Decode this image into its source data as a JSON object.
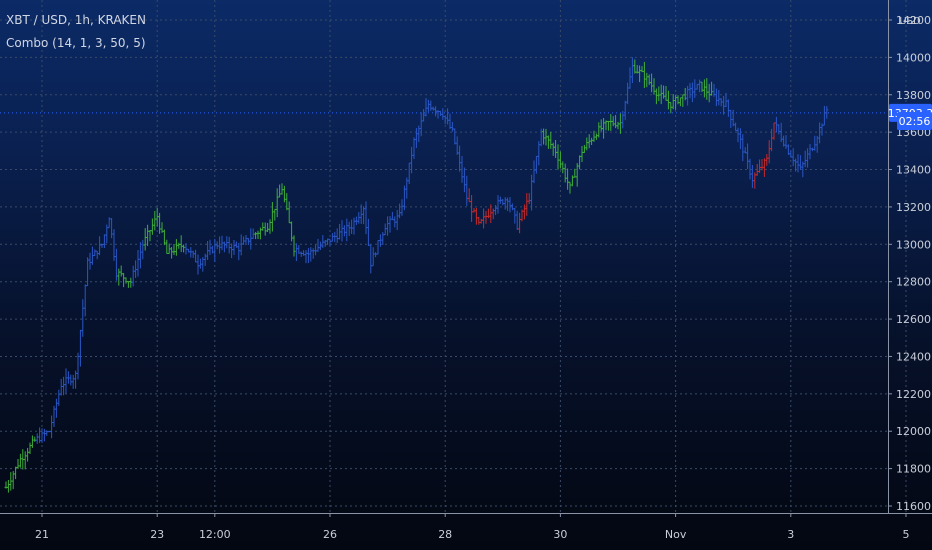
{
  "legend": {
    "symbol": "XBT / USD, 1h, KRAKEN",
    "indicator": "Combo (14, 1, 3, 50, 5)"
  },
  "price_scale": {
    "currency": "USD",
    "last_price": "13703.3",
    "countdown": "02:56"
  },
  "colors": {
    "bar_up": "#3fae3a",
    "bar_down": "#c62a2a",
    "bar_neutral": "#2a57c6",
    "grid": "#3a4a66",
    "badge": "#2962ff"
  },
  "chart_data": {
    "type": "ohlc",
    "title": "XBT / USD, 1h, KRAKEN",
    "xlabel": "",
    "ylabel": "USD",
    "ylim": [
      11550,
      14200
    ],
    "yticks": [
      11600,
      11800,
      12000,
      12200,
      12400,
      12600,
      12800,
      13000,
      13200,
      13400,
      13600,
      13800,
      14000,
      14200
    ],
    "ytick_labels": [
      "11600.0",
      "11800.0",
      "12000.0",
      "12200.0",
      "12400.0",
      "12600.0",
      "12800.0",
      "13000.0",
      "13200.0",
      "13400.0",
      "13600.0",
      "13800.0",
      "14000.0",
      "14200.0"
    ],
    "x_ticks": [
      {
        "label": "21",
        "hour": 15
      },
      {
        "label": "23",
        "hour": 63
      },
      {
        "label": "12:00",
        "hour": 87
      },
      {
        "label": "26",
        "hour": 135
      },
      {
        "label": "28",
        "hour": 183
      },
      {
        "label": "30",
        "hour": 231
      },
      {
        "label": "Nov",
        "hour": 279
      },
      {
        "label": "3",
        "hour": 327
      },
      {
        "label": "5",
        "hour": 375
      }
    ],
    "x_range_hours": [
      0,
      383
    ],
    "grid": true,
    "last_price": 13703.3,
    "series": [
      {
        "name": "Combo",
        "coloring": "green = buy, red = sell, blue = neutral",
        "path": [
          {
            "t": 0,
            "p": 11700,
            "s": "up"
          },
          {
            "t": 6,
            "p": 11850,
            "s": "up"
          },
          {
            "t": 12,
            "p": 11950,
            "s": "neutral"
          },
          {
            "t": 18,
            "p": 12000,
            "s": "neutral"
          },
          {
            "t": 23,
            "p": 12250,
            "s": "neutral"
          },
          {
            "t": 29,
            "p": 12300,
            "s": "neutral"
          },
          {
            "t": 34,
            "p": 12900,
            "s": "neutral"
          },
          {
            "t": 40,
            "p": 13000,
            "s": "neutral"
          },
          {
            "t": 43,
            "p": 13150,
            "s": "neutral"
          },
          {
            "t": 46,
            "p": 12850,
            "s": "up"
          },
          {
            "t": 52,
            "p": 12800,
            "s": "neutral"
          },
          {
            "t": 57,
            "p": 13000,
            "s": "up"
          },
          {
            "t": 63,
            "p": 13150,
            "s": "up"
          },
          {
            "t": 67,
            "p": 12950,
            "s": "up"
          },
          {
            "t": 74,
            "p": 13000,
            "s": "neutral"
          },
          {
            "t": 80,
            "p": 12900,
            "s": "neutral"
          },
          {
            "t": 88,
            "p": 13000,
            "s": "neutral"
          },
          {
            "t": 97,
            "p": 12980,
            "s": "neutral"
          },
          {
            "t": 103,
            "p": 13050,
            "s": "up"
          },
          {
            "t": 109,
            "p": 13100,
            "s": "up"
          },
          {
            "t": 115,
            "p": 13300,
            "s": "up"
          },
          {
            "t": 120,
            "p": 12980,
            "s": "neutral"
          },
          {
            "t": 126,
            "p": 12950,
            "s": "neutral"
          },
          {
            "t": 132,
            "p": 13000,
            "s": "neutral"
          },
          {
            "t": 138,
            "p": 13050,
            "s": "neutral"
          },
          {
            "t": 144,
            "p": 13100,
            "s": "neutral"
          },
          {
            "t": 149,
            "p": 13200,
            "s": "neutral"
          },
          {
            "t": 152,
            "p": 12900,
            "s": "neutral"
          },
          {
            "t": 158,
            "p": 13100,
            "s": "neutral"
          },
          {
            "t": 164,
            "p": 13150,
            "s": "neutral"
          },
          {
            "t": 170,
            "p": 13550,
            "s": "neutral"
          },
          {
            "t": 176,
            "p": 13750,
            "s": "neutral"
          },
          {
            "t": 182,
            "p": 13700,
            "s": "neutral"
          },
          {
            "t": 186,
            "p": 13600,
            "s": "neutral"
          },
          {
            "t": 192,
            "p": 13250,
            "s": "down"
          },
          {
            "t": 197,
            "p": 13100,
            "s": "down"
          },
          {
            "t": 203,
            "p": 13200,
            "s": "neutral"
          },
          {
            "t": 209,
            "p": 13250,
            "s": "neutral"
          },
          {
            "t": 213,
            "p": 13100,
            "s": "down"
          },
          {
            "t": 218,
            "p": 13250,
            "s": "neutral"
          },
          {
            "t": 223,
            "p": 13600,
            "s": "up"
          },
          {
            "t": 229,
            "p": 13500,
            "s": "up"
          },
          {
            "t": 235,
            "p": 13300,
            "s": "up"
          },
          {
            "t": 240,
            "p": 13500,
            "s": "up"
          },
          {
            "t": 246,
            "p": 13600,
            "s": "up"
          },
          {
            "t": 251,
            "p": 13650,
            "s": "up"
          },
          {
            "t": 256,
            "p": 13650,
            "s": "neutral"
          },
          {
            "t": 261,
            "p": 13950,
            "s": "up"
          },
          {
            "t": 266,
            "p": 13900,
            "s": "up"
          },
          {
            "t": 272,
            "p": 13800,
            "s": "up"
          },
          {
            "t": 277,
            "p": 13750,
            "s": "up"
          },
          {
            "t": 283,
            "p": 13800,
            "s": "neutral"
          },
          {
            "t": 289,
            "p": 13850,
            "s": "up"
          },
          {
            "t": 294,
            "p": 13800,
            "s": "neutral"
          },
          {
            "t": 300,
            "p": 13750,
            "s": "neutral"
          },
          {
            "t": 306,
            "p": 13550,
            "s": "neutral"
          },
          {
            "t": 311,
            "p": 13350,
            "s": "down"
          },
          {
            "t": 317,
            "p": 13450,
            "s": "down"
          },
          {
            "t": 320,
            "p": 13650,
            "s": "neutral"
          },
          {
            "t": 326,
            "p": 13500,
            "s": "neutral"
          },
          {
            "t": 331,
            "p": 13400,
            "s": "neutral"
          },
          {
            "t": 337,
            "p": 13550,
            "s": "neutral"
          },
          {
            "t": 342,
            "p": 13720,
            "s": "neutral"
          }
        ]
      }
    ]
  }
}
